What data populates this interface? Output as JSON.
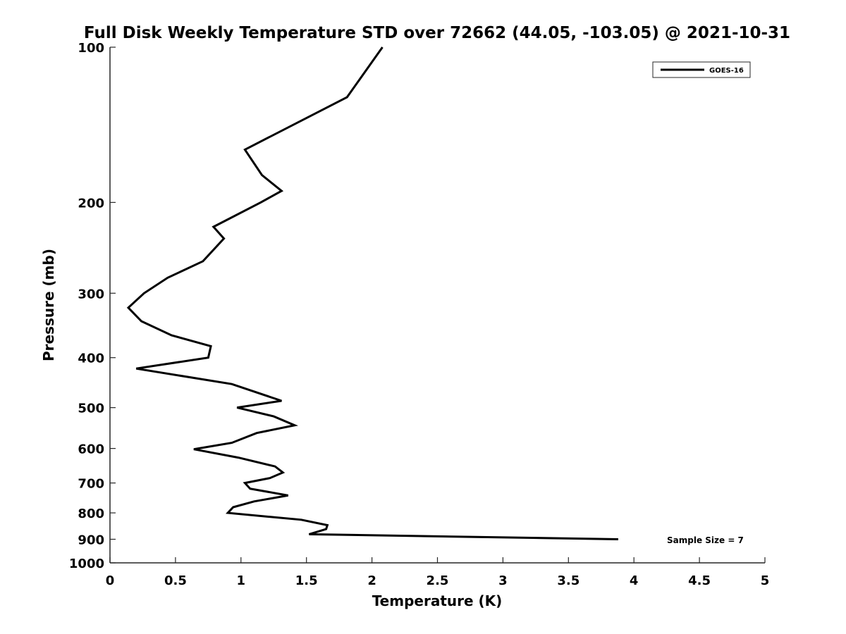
{
  "chart_data": {
    "type": "line",
    "title": "Full Disk Weekly Temperature STD over 72662 (44.05, -103.05) @ 2021-10-31",
    "xlabel": "Temperature (K)",
    "ylabel": "Pressure (mb)",
    "xlim": [
      0,
      5
    ],
    "ylim": [
      100,
      1000
    ],
    "y_scale": "log",
    "y_reversed": true,
    "x_ticks": [
      "0",
      "0.5",
      "1",
      "1.5",
      "2",
      "2.5",
      "3",
      "3.5",
      "4",
      "4.5",
      "5"
    ],
    "y_ticks": [
      "100",
      "200",
      "300",
      "400",
      "500",
      "600",
      "700",
      "800",
      "900",
      "1000"
    ],
    "grid": false,
    "legend": {
      "location": "top-right"
    },
    "annotation": "Sample Size = 7",
    "series": [
      {
        "name": "GOES-16",
        "color": "#000000",
        "points": [
          {
            "x": 2.08,
            "y": 100
          },
          {
            "x": 1.81,
            "y": 125
          },
          {
            "x": 1.03,
            "y": 158
          },
          {
            "x": 1.16,
            "y": 177
          },
          {
            "x": 1.31,
            "y": 190
          },
          {
            "x": 1.15,
            "y": 200
          },
          {
            "x": 0.79,
            "y": 223
          },
          {
            "x": 0.87,
            "y": 235
          },
          {
            "x": 0.71,
            "y": 260
          },
          {
            "x": 0.44,
            "y": 280
          },
          {
            "x": 0.26,
            "y": 300
          },
          {
            "x": 0.14,
            "y": 320
          },
          {
            "x": 0.24,
            "y": 340
          },
          {
            "x": 0.47,
            "y": 362
          },
          {
            "x": 0.77,
            "y": 380
          },
          {
            "x": 0.75,
            "y": 400
          },
          {
            "x": 0.2,
            "y": 420
          },
          {
            "x": 0.93,
            "y": 450
          },
          {
            "x": 1.31,
            "y": 485
          },
          {
            "x": 0.97,
            "y": 500
          },
          {
            "x": 1.25,
            "y": 520
          },
          {
            "x": 1.41,
            "y": 541
          },
          {
            "x": 1.12,
            "y": 560
          },
          {
            "x": 0.93,
            "y": 585
          },
          {
            "x": 0.64,
            "y": 602
          },
          {
            "x": 0.98,
            "y": 625
          },
          {
            "x": 1.26,
            "y": 650
          },
          {
            "x": 1.32,
            "y": 668
          },
          {
            "x": 1.22,
            "y": 685
          },
          {
            "x": 1.03,
            "y": 700
          },
          {
            "x": 1.07,
            "y": 718
          },
          {
            "x": 1.36,
            "y": 740
          },
          {
            "x": 1.1,
            "y": 760
          },
          {
            "x": 0.94,
            "y": 780
          },
          {
            "x": 0.9,
            "y": 800
          },
          {
            "x": 1.46,
            "y": 825
          },
          {
            "x": 1.66,
            "y": 845
          },
          {
            "x": 1.65,
            "y": 860
          },
          {
            "x": 1.52,
            "y": 880
          },
          {
            "x": 3.88,
            "y": 900
          }
        ]
      }
    ]
  }
}
